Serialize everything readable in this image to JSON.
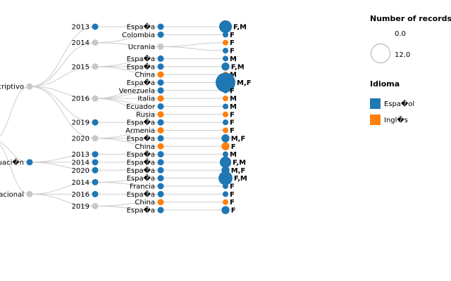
{
  "chart_data": {
    "type": "tree",
    "colors": {
      "espanol": "#1f77b4",
      "ingles": "#ff7f0e",
      "mixed": "#c8c8c8",
      "link": "#cccccc",
      "circle_stroke": "#aaaaaa"
    },
    "legend": {
      "size_title": "Number of records",
      "size_values": [
        "0.0",
        "12.0"
      ],
      "color_title": "Idioma",
      "color_items": [
        {
          "label": "Espa�ol",
          "color": "#1f77b4"
        },
        {
          "label": "Ingl�s",
          "color": "#ff7f0e"
        }
      ]
    },
    "groups": [
      {
        "label": "Descriptivo",
        "color": "mixed",
        "years": [
          {
            "year": "2013",
            "color": "espanol",
            "countries": [
              {
                "country": "Espa�a",
                "color": "espanol",
                "count": 5,
                "sex": "F,M"
              }
            ]
          },
          {
            "year": "2014",
            "color": "mixed",
            "countries": [
              {
                "country": "Colombia",
                "color": "espanol",
                "count": 1,
                "sex": "F"
              },
              {
                "country": "Ucrania",
                "color": "mixed",
                "count": null,
                "sex": null,
                "children": [
                  {
                    "color": "ingles",
                    "count": 1,
                    "sex": "F"
                  },
                  {
                    "color": "espanol",
                    "count": 1,
                    "sex": "F"
                  }
                ]
              }
            ]
          },
          {
            "year": "2015",
            "color": "mixed",
            "countries": [
              {
                "country": "Espa�a",
                "color": "espanol",
                "count": 1,
                "sex": "M"
              },
              {
                "country": "Espa�a",
                "color": "espanol",
                "count": 2,
                "sex": "F,M"
              },
              {
                "country": "China",
                "color": "ingles",
                "count": 1,
                "sex": "M"
              }
            ]
          },
          {
            "year": "2016",
            "color": "mixed",
            "countries": [
              {
                "country": "Espa�a",
                "color": "espanol",
                "count": 12,
                "sex": "M,F"
              },
              {
                "country": "Venezuela",
                "color": "espanol",
                "count": 1,
                "sex": "F"
              },
              {
                "country": "Italia",
                "color": "ingles",
                "count": 1,
                "sex": "M"
              },
              {
                "country": "Ecuador",
                "color": "espanol",
                "count": 1,
                "sex": "M"
              },
              {
                "country": "Rusia",
                "color": "ingles",
                "count": 1,
                "sex": "F"
              }
            ]
          },
          {
            "year": "2019",
            "color": "espanol",
            "countries": [
              {
                "country": "Espa�a",
                "color": "espanol",
                "count": 1,
                "sex": "F"
              }
            ]
          },
          {
            "year": "2020",
            "color": "mixed",
            "countries": [
              {
                "country": "Armenia",
                "color": "ingles",
                "count": 1,
                "sex": "F"
              },
              {
                "country": "Espa�a",
                "color": "espanol",
                "count": 2,
                "sex": "M,F"
              },
              {
                "country": "China",
                "color": "ingles",
                "count": 2,
                "sex": "F"
              }
            ]
          }
        ]
      },
      {
        "label": "Evaluaci�n",
        "color": "espanol",
        "years": [
          {
            "year": "2013",
            "color": "espanol",
            "countries": [
              {
                "country": "Espa�a",
                "color": "espanol",
                "count": 1,
                "sex": "M"
              }
            ]
          },
          {
            "year": "2014",
            "color": "espanol",
            "countries": [
              {
                "country": "Espa�a",
                "color": "espanol",
                "count": 4,
                "sex": "F,M"
              }
            ]
          },
          {
            "year": "2020",
            "color": "espanol",
            "countries": [
              {
                "country": "Espa�a",
                "color": "espanol",
                "count": 2,
                "sex": "M,F"
              }
            ]
          }
        ]
      },
      {
        "label": "Correlacional",
        "color": "mixed",
        "years": [
          {
            "year": "2014",
            "color": "espanol",
            "countries": [
              {
                "country": "Espa�a",
                "color": "espanol",
                "count": 6,
                "sex": "F,M"
              },
              {
                "country": "Francia",
                "color": "espanol",
                "count": 1,
                "sex": "F"
              }
            ]
          },
          {
            "year": "2016",
            "color": "espanol",
            "countries": [
              {
                "country": "Espa�a",
                "color": "espanol",
                "count": 1,
                "sex": "F"
              }
            ]
          },
          {
            "year": "2019",
            "color": "mixed",
            "countries": [
              {
                "country": "China",
                "color": "ingles",
                "count": 1,
                "sex": "F"
              },
              {
                "country": "Espa�a",
                "color": "espanol",
                "count": 2,
                "sex": "F"
              }
            ]
          }
        ]
      }
    ]
  }
}
